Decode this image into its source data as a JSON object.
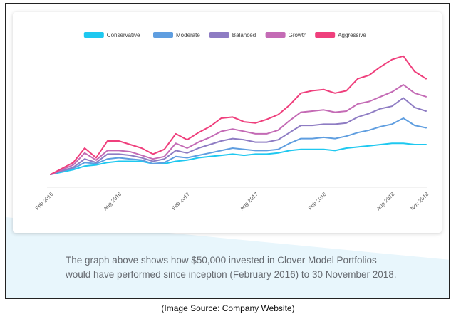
{
  "caption": "The graph above shows how $50,000 invested in Clover Model Portfolios would have performed since inception (February 2016) to 30 November 2018.",
  "source_note": "(Image Source: Company Website)",
  "chart_data": {
    "type": "line",
    "title": "",
    "xlabel": "",
    "ylabel": "",
    "grid": false,
    "legend_position": "top-center",
    "x_tick_labels": [
      "Feb 2016",
      "Aug 2016",
      "Feb 2017",
      "Aug 2017",
      "Feb 2018",
      "Aug 2018",
      "Nov 2018"
    ],
    "x_tick_positions": [
      0,
      6,
      12,
      18,
      24,
      30,
      33
    ],
    "x": [
      "2016-02",
      "2016-03",
      "2016-04",
      "2016-05",
      "2016-06",
      "2016-07",
      "2016-08",
      "2016-09",
      "2016-10",
      "2016-11",
      "2016-12",
      "2017-01",
      "2017-02",
      "2017-03",
      "2017-04",
      "2017-05",
      "2017-06",
      "2017-07",
      "2017-08",
      "2017-09",
      "2017-10",
      "2017-11",
      "2017-12",
      "2018-01",
      "2018-02",
      "2018-03",
      "2018-04",
      "2018-05",
      "2018-06",
      "2018-07",
      "2018-08",
      "2018-09",
      "2018-10",
      "2018-11"
    ],
    "ylim": [
      0,
      100
    ],
    "series": [
      {
        "name": "Conservative",
        "color": "#1ec8f0",
        "values": [
          0.0,
          2,
          4,
          7,
          8,
          10,
          11,
          11,
          11,
          9,
          9,
          11,
          12,
          14,
          15,
          16,
          17,
          16,
          17,
          17,
          18,
          20,
          21,
          21,
          21,
          20,
          22,
          23,
          24,
          25,
          26,
          26,
          25,
          25
        ]
      },
      {
        "name": "Moderate",
        "color": "#5f9ee0",
        "values": [
          0.0,
          3,
          5,
          10,
          9,
          13,
          14,
          13,
          12,
          9,
          10,
          15,
          14,
          16,
          18,
          20,
          22,
          21,
          20,
          20,
          21,
          26,
          30,
          30,
          31,
          30,
          32,
          35,
          37,
          40,
          42,
          47,
          41,
          39
        ]
      },
      {
        "name": "Balanced",
        "color": "#8e7cc3",
        "values": [
          0.0,
          3,
          6,
          13,
          10,
          17,
          17,
          16,
          14,
          11,
          13,
          20,
          18,
          22,
          25,
          28,
          30,
          29,
          27,
          27,
          29,
          35,
          41,
          41,
          42,
          42,
          43,
          48,
          51,
          55,
          57,
          64,
          56,
          53
        ]
      },
      {
        "name": "Growth",
        "color": "#c46bb5",
        "values": [
          0.0,
          4,
          8,
          18,
          12,
          20,
          20,
          19,
          16,
          13,
          15,
          26,
          22,
          27,
          31,
          36,
          38,
          36,
          34,
          34,
          37,
          45,
          52,
          53,
          54,
          52,
          53,
          59,
          61,
          65,
          69,
          75,
          68,
          65
        ]
      },
      {
        "name": "Aggressive",
        "color": "#ef3f7c",
        "values": [
          0.0,
          5,
          10,
          22,
          14,
          28,
          28,
          25,
          22,
          17,
          21,
          34,
          29,
          35,
          40,
          47,
          48,
          44,
          43,
          46,
          50,
          58,
          68,
          70,
          71,
          68,
          70,
          80,
          83,
          90,
          96,
          99,
          86,
          80
        ]
      }
    ]
  }
}
